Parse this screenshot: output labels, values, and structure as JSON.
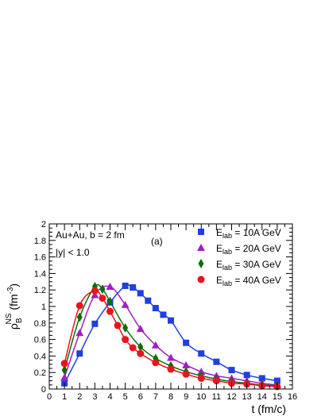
{
  "chart_data": {
    "type": "scatter",
    "annotations": {
      "line1": "Au+Au, b = 2 fm",
      "line2": "|y| < 1.0",
      "panel": "(a)"
    },
    "xlabel": "t (fm/c)",
    "ylabel": {
      "main": "ρ",
      "sup": "NS",
      "sub": "B",
      "unit_pre": " (fm",
      "unit_sup": "-3",
      "unit_post": ")"
    },
    "xlim": [
      0,
      16
    ],
    "ylim": [
      0,
      2
    ],
    "x_ticks": [
      0,
      1,
      2,
      3,
      4,
      5,
      6,
      7,
      8,
      9,
      10,
      11,
      12,
      13,
      14,
      15,
      16
    ],
    "y_ticks": [
      0,
      0.2,
      0.4,
      0.6,
      0.8,
      1,
      1.2,
      1.4,
      1.6,
      1.8,
      2
    ],
    "grid": false,
    "legend_position": "top-right",
    "series": [
      {
        "legend_pre": "E",
        "legend_sub": "lab",
        "legend_post": " = 10A GeV",
        "color": "#1f3fe0",
        "marker": "square",
        "x": [
          1,
          2,
          3,
          4,
          5,
          5.5,
          6,
          6.5,
          7,
          7.5,
          8,
          9,
          10,
          11,
          12,
          13,
          14,
          15
        ],
        "y": [
          0.07,
          0.43,
          0.79,
          1.05,
          1.25,
          1.23,
          1.16,
          1.07,
          0.98,
          0.9,
          0.83,
          0.56,
          0.43,
          0.33,
          0.23,
          0.17,
          0.13,
          0.1
        ]
      },
      {
        "legend_pre": "E",
        "legend_sub": "lab",
        "legend_post": " = 20A GeV",
        "color": "#a020c0",
        "marker": "triangle",
        "x": [
          1,
          2,
          3,
          4,
          5,
          6,
          7,
          8,
          9,
          10,
          11,
          12,
          13,
          14,
          15
        ],
        "y": [
          0.14,
          0.68,
          1.14,
          1.24,
          1.02,
          0.73,
          0.53,
          0.38,
          0.29,
          0.21,
          0.16,
          0.13,
          0.1,
          0.07,
          0.05
        ]
      },
      {
        "legend_pre": "E",
        "legend_sub": "lab",
        "legend_post": " = 30A GeV",
        "color": "#0a6e0a",
        "marker": "diamond",
        "x": [
          1,
          2,
          3,
          3.5,
          4,
          5,
          6,
          7,
          8,
          9,
          10,
          11,
          12,
          13,
          14,
          15
        ],
        "y": [
          0.23,
          0.87,
          1.24,
          1.21,
          1.06,
          0.74,
          0.51,
          0.37,
          0.28,
          0.21,
          0.16,
          0.12,
          0.09,
          0.07,
          0.05,
          0.04
        ]
      },
      {
        "legend_pre": "E",
        "legend_sub": "lab",
        "legend_post": " = 40A GeV",
        "color": "#e8141c",
        "marker": "circle",
        "x": [
          1,
          2,
          3,
          3.5,
          4,
          4.5,
          5,
          5.5,
          6,
          7,
          8,
          9,
          10,
          11,
          12,
          13,
          14,
          15
        ],
        "y": [
          0.31,
          1.01,
          1.19,
          1.1,
          0.94,
          0.77,
          0.6,
          0.5,
          0.43,
          0.32,
          0.24,
          0.18,
          0.13,
          0.1,
          0.07,
          0.06,
          0.04,
          0.03
        ]
      }
    ]
  }
}
